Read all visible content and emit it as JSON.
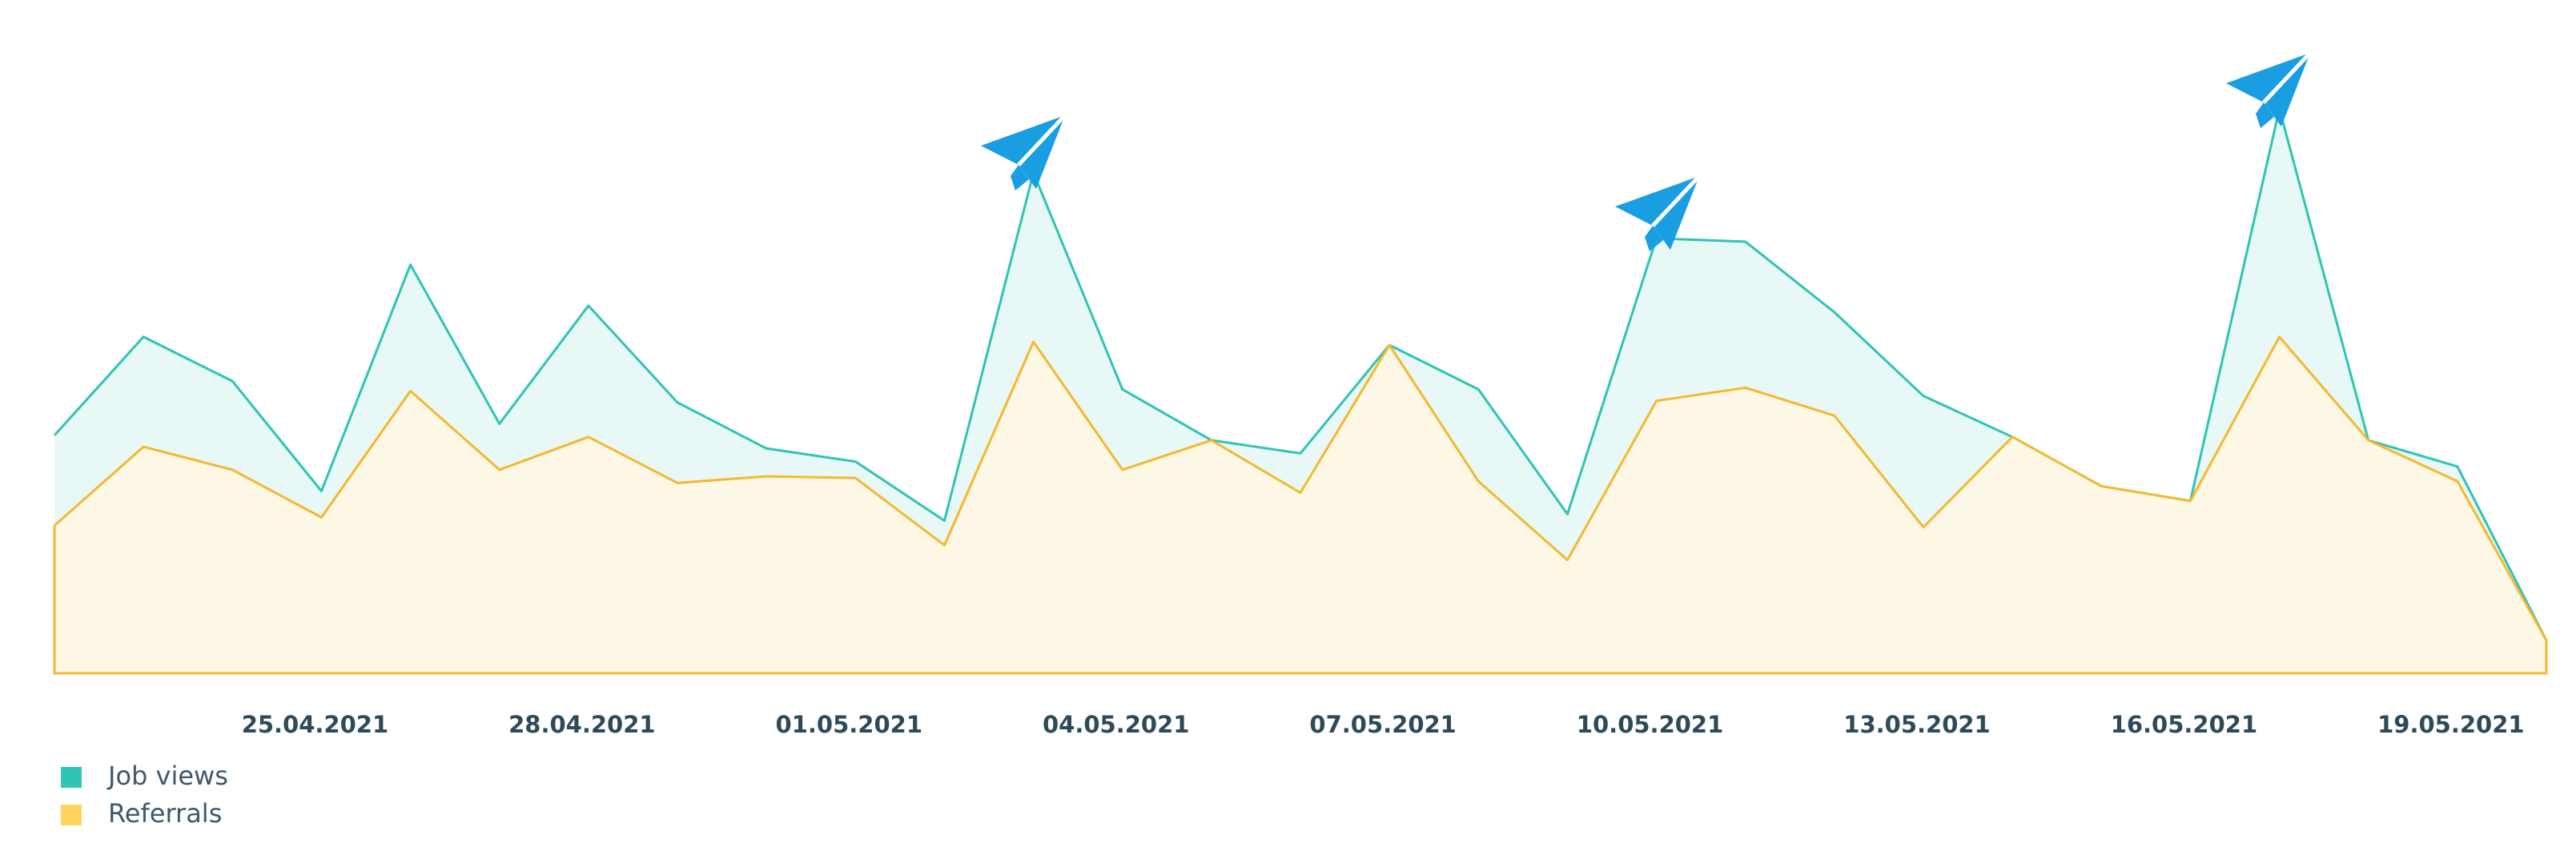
{
  "chart_data": {
    "type": "area",
    "categories": [
      null,
      null,
      null,
      "25.04.2021",
      null,
      null,
      "28.04.2021",
      null,
      null,
      "01.05.2021",
      null,
      null,
      "04.05.2021",
      null,
      null,
      "07.05.2021",
      null,
      null,
      "10.05.2021",
      null,
      null,
      "13.05.2021",
      null,
      null,
      "16.05.2021",
      null,
      null,
      "19.05.2021",
      null
    ],
    "series": [
      {
        "name": "Job views",
        "color": "#2ec4b6",
        "fill": "#e8f8f6",
        "values": [
          145,
          205,
          178,
          111,
          249,
          152,
          224,
          165,
          137,
          129,
          93,
          305,
          173,
          142,
          134,
          200,
          173,
          97,
          265,
          263,
          220,
          169,
          144,
          114,
          105,
          344,
          142,
          126,
          20
        ]
      },
      {
        "name": "Referrals",
        "color": "#f5b82e",
        "fill": "#fdf7e6",
        "legend_color": "#ffd35c",
        "values": [
          90,
          138,
          124,
          95,
          172,
          124,
          144,
          116,
          120,
          119,
          78,
          202,
          124,
          142,
          110,
          200,
          117,
          69,
          166,
          174,
          157,
          89,
          144,
          114,
          105,
          205,
          142,
          117,
          20
        ]
      }
    ],
    "ylim": [
      0,
      400
    ]
  }
}
